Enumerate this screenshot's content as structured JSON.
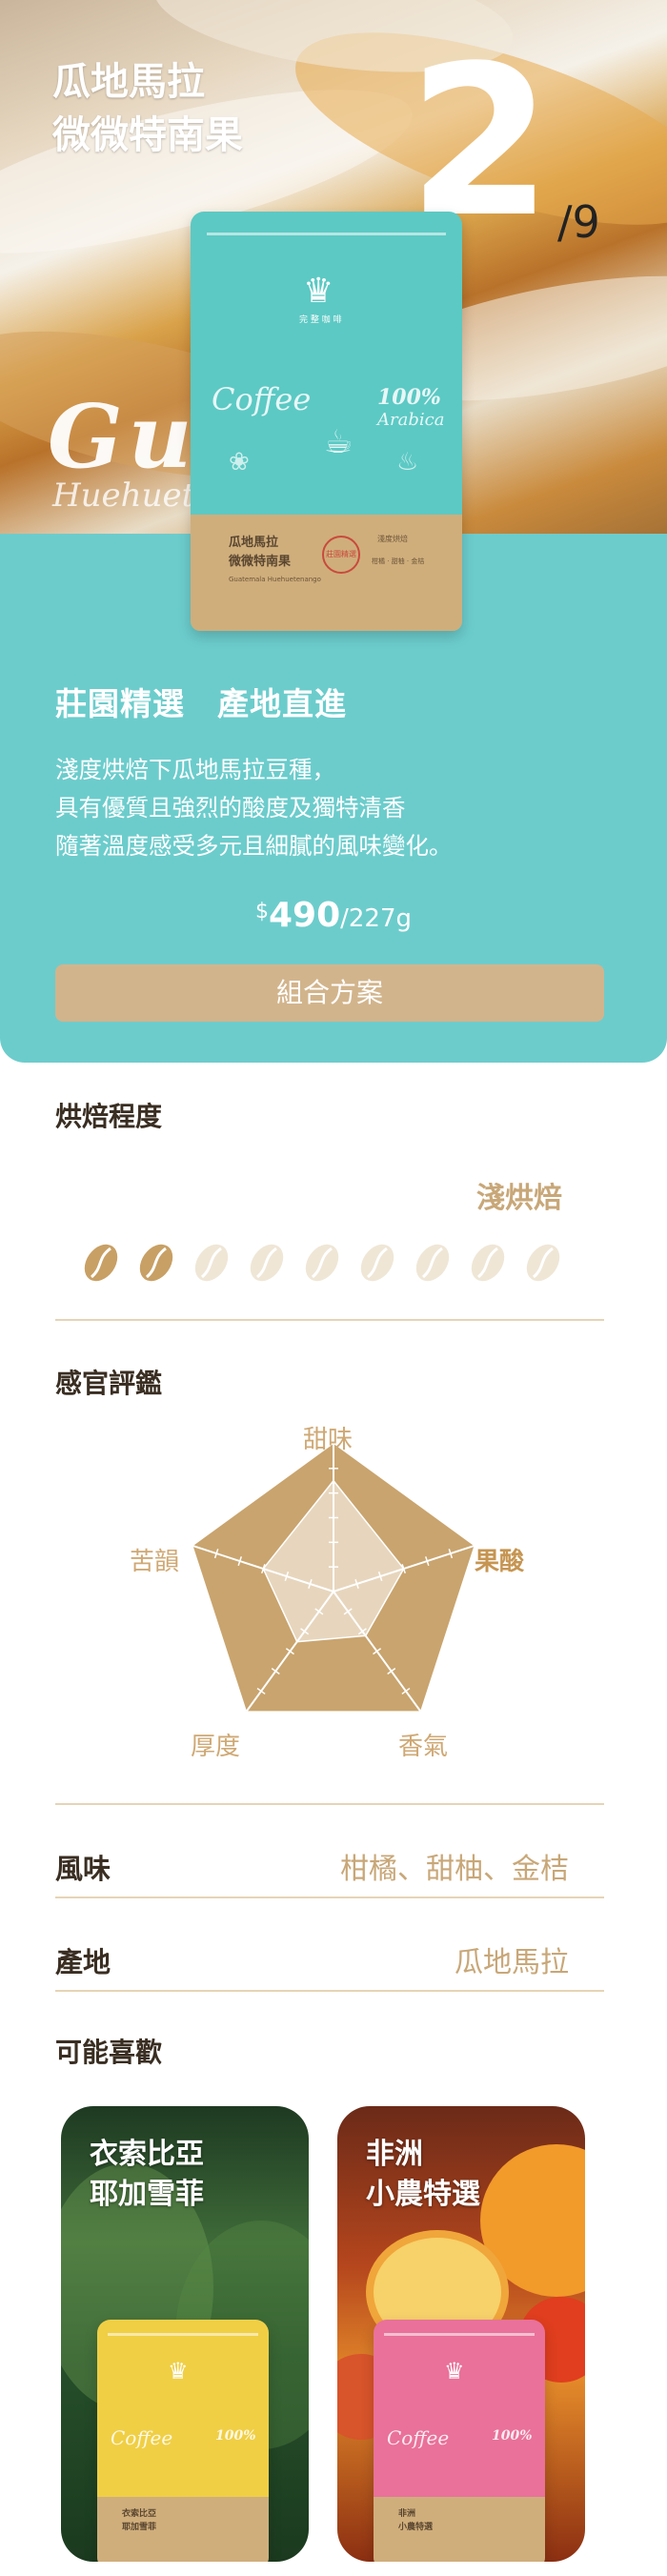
{
  "hero": {
    "title_line1": "瓜地馬拉",
    "title_line2": "微微特南果",
    "index": "2",
    "total": "/9",
    "script_text": "Gu      ala",
    "script_sub": "Huehuet",
    "tagline": "莊園精選　產地直進",
    "description": [
      "淺度烘焙下瓜地馬拉豆種，",
      "具有優質且強烈的酸度及獨特清香",
      "隨著溫度感受多元且細膩的風味變化。"
    ],
    "price_currency": "$",
    "price_amount": "490",
    "price_unit": "/227g",
    "combo_button": "組合方案"
  },
  "bag": {
    "brand": "完 整 咖 啡",
    "coffee_word": "Coffee",
    "arabica_pct": "100%",
    "arabica_word": "Arabica",
    "label_name_1": "瓜地馬拉",
    "label_name_2": "微微特南果",
    "label_en": "Guatemala Huehuetenango",
    "label_stamp": "莊園精選",
    "label_roast": "淺度烘焙",
    "label_tags": "柑橘 · 甜柚 · 金桔"
  },
  "roast": {
    "title": "烘焙程度",
    "level_text": "淺烘焙",
    "filled_beans": 2,
    "total_beans": 9
  },
  "sensory": {
    "title": "感官評鑑",
    "axes": [
      "甜味",
      "果酸",
      "香氣",
      "厚度",
      "苦韻"
    ],
    "highlighted_axis": "果酸",
    "scores": [
      0.75,
      0.5,
      0.37,
      0.42,
      0.5
    ]
  },
  "flavor": {
    "label": "風味",
    "value": "柑橘、甜柚、金桔"
  },
  "origin": {
    "label": "產地",
    "value": "瓜地馬拉"
  },
  "recommend": {
    "title": "可能喜歡",
    "items": [
      {
        "title_line1": "衣索比亞",
        "title_line2": "耶加雪菲",
        "bag_color": "#f0cf45",
        "label_1": "衣索比亞",
        "label_2": "耶加雪菲"
      },
      {
        "title_line1": "非洲",
        "title_line2": "小農特選",
        "bag_color": "#e9719a",
        "label_1": "非洲",
        "label_2": "小農特選"
      }
    ]
  },
  "colors": {
    "teal": "#6ccccc",
    "gold": "#d2b48c",
    "gold_text": "#c8a778",
    "dark_text": "#3a2e22"
  }
}
